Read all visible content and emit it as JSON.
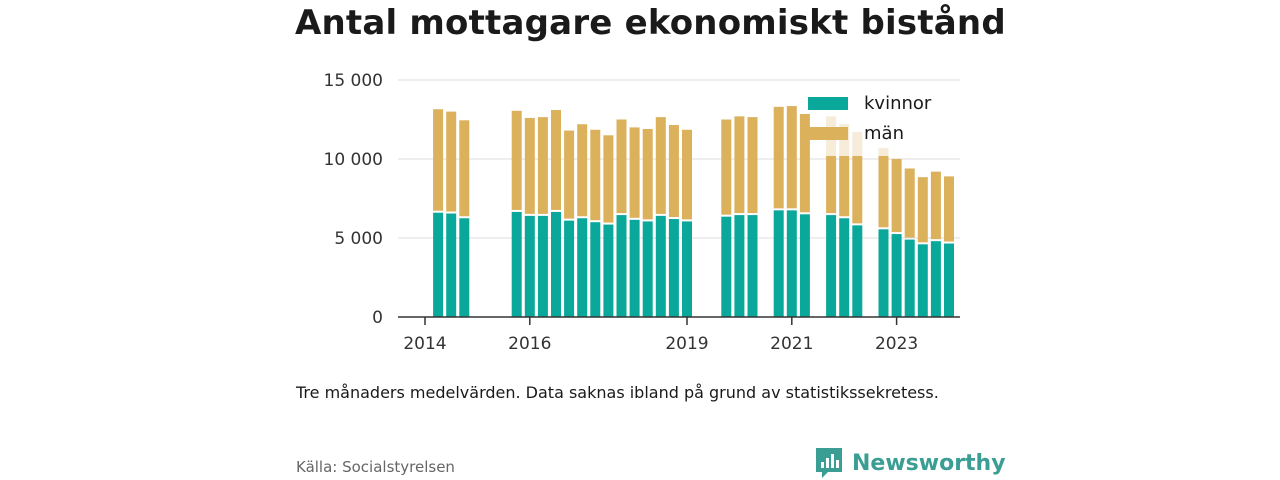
{
  "title": "Antal mottagare ekonomiskt bistånd",
  "note": "Tre månaders medelvärden. Data saknas ibland på grund av statistikssekretess.",
  "source": "Källa: Socialstyrelsen",
  "brand": {
    "name": "Newsworthy",
    "color": "#3a9e94",
    "logo_icon": "bar-chart-bubble-icon"
  },
  "colors": {
    "kvinnor": "#0aa89a",
    "man": "#dcb15c",
    "man_faded": "#f6ecd9",
    "grid": "#dddddd",
    "axis": "#333333"
  },
  "chart_data": {
    "type": "bar",
    "stacked": true,
    "y_ticks": [
      {
        "value": 0,
        "label": "0"
      },
      {
        "value": 5000,
        "label": "5 000"
      },
      {
        "value": 10000,
        "label": "10 000"
      },
      {
        "value": 15000,
        "label": "15 000"
      }
    ],
    "ylim": [
      0,
      15000
    ],
    "grid": true,
    "x_ticks": [
      {
        "slot": 0,
        "label": "2014"
      },
      {
        "slot": 8,
        "label": "2016"
      },
      {
        "slot": 20,
        "label": "2019"
      },
      {
        "slot": 28,
        "label": "2021"
      },
      {
        "slot": 36,
        "label": "2023"
      }
    ],
    "x_slots": 42,
    "legend": {
      "position": "top-right",
      "entries": [
        {
          "key": "kvinnor",
          "label": "kvinnor"
        },
        {
          "key": "man",
          "label": "män"
        }
      ]
    },
    "bars": [
      {
        "slot": 1,
        "kvinnor": 6600,
        "man": 6550
      },
      {
        "slot": 2,
        "kvinnor": 6550,
        "man": 6450
      },
      {
        "slot": 3,
        "kvinnor": 6250,
        "man": 6200
      },
      {
        "slot": 7,
        "kvinnor": 6650,
        "man": 6400
      },
      {
        "slot": 8,
        "kvinnor": 6400,
        "man": 6200
      },
      {
        "slot": 9,
        "kvinnor": 6400,
        "man": 6250
      },
      {
        "slot": 10,
        "kvinnor": 6650,
        "man": 6450
      },
      {
        "slot": 11,
        "kvinnor": 6100,
        "man": 5700
      },
      {
        "slot": 12,
        "kvinnor": 6250,
        "man": 5950
      },
      {
        "slot": 13,
        "kvinnor": 6000,
        "man": 5850
      },
      {
        "slot": 14,
        "kvinnor": 5850,
        "man": 5650
      },
      {
        "slot": 15,
        "kvinnor": 6450,
        "man": 6050
      },
      {
        "slot": 16,
        "kvinnor": 6150,
        "man": 5850
      },
      {
        "slot": 17,
        "kvinnor": 6050,
        "man": 5850
      },
      {
        "slot": 18,
        "kvinnor": 6400,
        "man": 6250
      },
      {
        "slot": 19,
        "kvinnor": 6200,
        "man": 5950
      },
      {
        "slot": 20,
        "kvinnor": 6050,
        "man": 5800
      },
      {
        "slot": 23,
        "kvinnor": 6350,
        "man": 6150
      },
      {
        "slot": 24,
        "kvinnor": 6450,
        "man": 6250
      },
      {
        "slot": 25,
        "kvinnor": 6450,
        "man": 6200
      },
      {
        "slot": 27,
        "kvinnor": 6750,
        "man": 6550
      },
      {
        "slot": 28,
        "kvinnor": 6750,
        "man": 6600
      },
      {
        "slot": 29,
        "kvinnor": 6500,
        "man": 6350
      },
      {
        "slot": 31,
        "kvinnor": 6450,
        "man": 3750,
        "man_faded": 2500
      },
      {
        "slot": 32,
        "kvinnor": 6250,
        "man": 3950,
        "man_faded": 2000
      },
      {
        "slot": 33,
        "kvinnor": 5800,
        "man": 4400,
        "man_faded": 1500
      },
      {
        "slot": 35,
        "kvinnor": 5550,
        "man": 4650,
        "man_faded": 500
      },
      {
        "slot": 36,
        "kvinnor": 5250,
        "man": 4750
      },
      {
        "slot": 37,
        "kvinnor": 4900,
        "man": 4500
      },
      {
        "slot": 38,
        "kvinnor": 4600,
        "man": 4250
      },
      {
        "slot": 39,
        "kvinnor": 4800,
        "man": 4400
      },
      {
        "slot": 40,
        "kvinnor": 4650,
        "man": 4250
      }
    ]
  }
}
